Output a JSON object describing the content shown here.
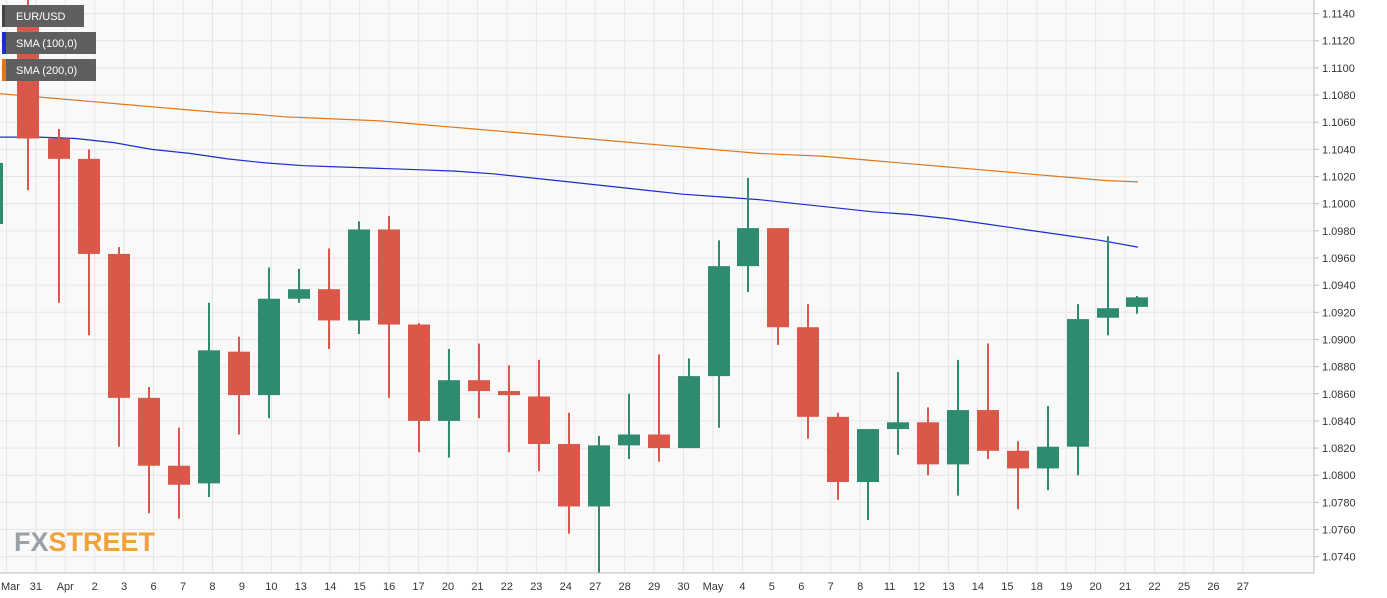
{
  "legend": {
    "symbol": "EUR/USD",
    "sma100": "SMA (100,0)",
    "sma200": "SMA (200,0)"
  },
  "logo": {
    "part1": "FX",
    "part2": "STREET"
  },
  "colors": {
    "bull": "#2e8b6f",
    "bear": "#d9584a",
    "sma100": "#1c2ccf",
    "sma200": "#e0761c",
    "grid": "#e6e6e6",
    "plot_bg": "#f9f9f9",
    "legend_bg": "#5f5f5f"
  },
  "chart_data": {
    "type": "candlestick",
    "title": "EUR/USD",
    "xlabel": "",
    "ylabel": "",
    "ylim": [
      1.0728,
      1.115
    ],
    "y_ticks": [
      "1.0740",
      "1.0760",
      "1.0780",
      "1.0800",
      "1.0820",
      "1.0840",
      "1.0860",
      "1.0880",
      "1.0900",
      "1.0920",
      "1.0940",
      "1.0960",
      "1.0980",
      "1.1000",
      "1.1020",
      "1.1040",
      "1.1060",
      "1.1080",
      "1.1100",
      "1.1120",
      "1.1140"
    ],
    "x_ticks": [
      "Mar",
      "31",
      "Apr",
      "2",
      "3",
      "6",
      "7",
      "8",
      "9",
      "10",
      "13",
      "14",
      "15",
      "16",
      "17",
      "20",
      "21",
      "22",
      "23",
      "24",
      "27",
      "28",
      "29",
      "30",
      "May",
      "4",
      "5",
      "6",
      "7",
      "8",
      "11",
      "12",
      "13",
      "14",
      "15",
      "18",
      "19",
      "20",
      "21",
      "22",
      "25",
      "26",
      "27"
    ],
    "grid": true,
    "candles": [
      {
        "date": "Mar 30",
        "open": 1.0985,
        "high": 1.115,
        "low": 1.0955,
        "close": 1.103
      },
      {
        "date": "Mar 30",
        "open": 1.1145,
        "high": 1.115,
        "low": 1.101,
        "close": 1.1048
      },
      {
        "date": "Mar 31",
        "open": 1.1048,
        "high": 1.1055,
        "low": 1.0927,
        "close": 1.1033
      },
      {
        "date": "Apr 1",
        "open": 1.1033,
        "high": 1.104,
        "low": 1.0903,
        "close": 1.0963
      },
      {
        "date": "Apr 2",
        "open": 1.0963,
        "high": 1.0968,
        "low": 1.0821,
        "close": 1.0857
      },
      {
        "date": "Apr 3",
        "open": 1.0857,
        "high": 1.0865,
        "low": 1.0772,
        "close": 1.0807
      },
      {
        "date": "Apr 6",
        "open": 1.0807,
        "high": 1.0835,
        "low": 1.0768,
        "close": 1.0793
      },
      {
        "date": "Apr 7",
        "open": 1.0794,
        "high": 1.0927,
        "low": 1.0784,
        "close": 1.0892
      },
      {
        "date": "Apr 8",
        "open": 1.0891,
        "high": 1.0902,
        "low": 1.083,
        "close": 1.0859
      },
      {
        "date": "Apr 9",
        "open": 1.0859,
        "high": 1.0953,
        "low": 1.0842,
        "close": 1.093
      },
      {
        "date": "Apr 10",
        "open": 1.093,
        "high": 1.0952,
        "low": 1.0927,
        "close": 1.0937
      },
      {
        "date": "Apr 13",
        "open": 1.0937,
        "high": 1.0967,
        "low": 1.0893,
        "close": 1.0914
      },
      {
        "date": "Apr 14",
        "open": 1.0914,
        "high": 1.0987,
        "low": 1.0904,
        "close": 1.0981
      },
      {
        "date": "Apr 15",
        "open": 1.0981,
        "high": 1.0991,
        "low": 1.0857,
        "close": 1.0911
      },
      {
        "date": "Apr 16",
        "open": 1.0911,
        "high": 1.0912,
        "low": 1.0817,
        "close": 1.084
      },
      {
        "date": "Apr 17",
        "open": 1.084,
        "high": 1.0893,
        "low": 1.0813,
        "close": 1.087
      },
      {
        "date": "Apr 20",
        "open": 1.087,
        "high": 1.0897,
        "low": 1.0842,
        "close": 1.0862
      },
      {
        "date": "Apr 21",
        "open": 1.0862,
        "high": 1.0881,
        "low": 1.0817,
        "close": 1.0859
      },
      {
        "date": "Apr 22",
        "open": 1.0858,
        "high": 1.0885,
        "low": 1.0803,
        "close": 1.0823
      },
      {
        "date": "Apr 23",
        "open": 1.0823,
        "high": 1.0846,
        "low": 1.0757,
        "close": 1.0777
      },
      {
        "date": "Apr 24",
        "open": 1.0777,
        "high": 1.0829,
        "low": 1.0728,
        "close": 1.0822
      },
      {
        "date": "Apr 27",
        "open": 1.0822,
        "high": 1.086,
        "low": 1.0812,
        "close": 1.083
      },
      {
        "date": "Apr 28",
        "open": 1.083,
        "high": 1.0889,
        "low": 1.081,
        "close": 1.082
      },
      {
        "date": "Apr 29",
        "open": 1.082,
        "high": 1.0886,
        "low": 1.082,
        "close": 1.0873
      },
      {
        "date": "Apr 30",
        "open": 1.0873,
        "high": 1.0973,
        "low": 1.0835,
        "close": 1.0954
      },
      {
        "date": "May 1",
        "open": 1.0954,
        "high": 1.1019,
        "low": 1.0935,
        "close": 1.0982
      },
      {
        "date": "May 4",
        "open": 1.0982,
        "high": 1.0982,
        "low": 1.0896,
        "close": 1.0909
      },
      {
        "date": "May 5",
        "open": 1.0909,
        "high": 1.0926,
        "low": 1.0827,
        "close": 1.0843
      },
      {
        "date": "May 6",
        "open": 1.0843,
        "high": 1.0846,
        "low": 1.0782,
        "close": 1.0795
      },
      {
        "date": "May 7",
        "open": 1.0795,
        "high": 1.0834,
        "low": 1.0767,
        "close": 1.0834
      },
      {
        "date": "May 8",
        "open": 1.0834,
        "high": 1.0876,
        "low": 1.0815,
        "close": 1.0839
      },
      {
        "date": "May 11",
        "open": 1.0839,
        "high": 1.085,
        "low": 1.08,
        "close": 1.0808
      },
      {
        "date": "May 12",
        "open": 1.0808,
        "high": 1.0885,
        "low": 1.0785,
        "close": 1.0848
      },
      {
        "date": "May 13",
        "open": 1.0848,
        "high": 1.0897,
        "low": 1.0812,
        "close": 1.0818
      },
      {
        "date": "May 14",
        "open": 1.0818,
        "high": 1.0825,
        "low": 1.0775,
        "close": 1.0805
      },
      {
        "date": "May 15",
        "open": 1.0805,
        "high": 1.0851,
        "low": 1.0789,
        "close": 1.0821
      },
      {
        "date": "May 18",
        "open": 1.0821,
        "high": 1.0926,
        "low": 1.08,
        "close": 1.0915
      },
      {
        "date": "May 19",
        "open": 1.0916,
        "high": 1.0976,
        "low": 1.0903,
        "close": 1.0923
      },
      {
        "date": "May 20",
        "open": 1.0924,
        "high": 1.0932,
        "low": 1.0919,
        "close": 1.0931
      }
    ],
    "series": [
      {
        "name": "SMA (100,0)",
        "type": "line",
        "values": [
          1.1049,
          1.1049,
          1.1048,
          1.1045,
          1.104,
          1.1037,
          1.1033,
          1.103,
          1.1028,
          1.1027,
          1.1026,
          1.1025,
          1.1024,
          1.1022,
          1.1019,
          1.1016,
          1.1013,
          1.101,
          1.1007,
          1.1005,
          1.1003,
          1.1,
          1.0997,
          1.0994,
          1.0992,
          1.0989,
          1.0985,
          1.0981,
          1.0977,
          1.0973,
          1.0968
        ]
      },
      {
        "name": "SMA (200,0)",
        "type": "line",
        "values": [
          1.1081,
          1.1079,
          1.1077,
          1.1075,
          1.1073,
          1.1071,
          1.1069,
          1.1067,
          1.1066,
          1.1064,
          1.1063,
          1.1062,
          1.1061,
          1.1059,
          1.1057,
          1.1055,
          1.1053,
          1.1051,
          1.1049,
          1.1047,
          1.1045,
          1.1043,
          1.1041,
          1.1039,
          1.1037,
          1.1036,
          1.1035,
          1.1033,
          1.1031,
          1.1029,
          1.1027,
          1.1025,
          1.1023,
          1.1021,
          1.1019,
          1.1017,
          1.1016
        ]
      }
    ]
  }
}
